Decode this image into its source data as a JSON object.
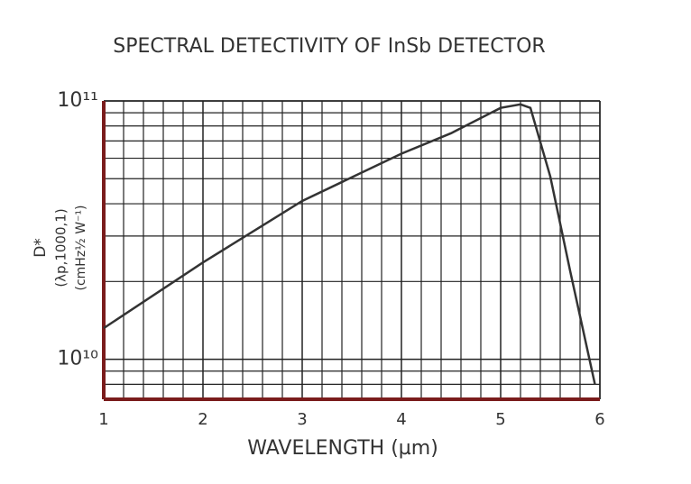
{
  "chart_data": {
    "type": "line",
    "title": "SPECTRAL DETECTIVITY OF InSb DETECTOR",
    "x_label": "WAVELENGTH (µm)",
    "y_label": "D*",
    "y_label_sub1": "(λp,1000,1)",
    "y_label_sub2": "(cmHz½ W⁻¹)",
    "log_y": true,
    "grid": true,
    "xlim": [
      1,
      6
    ],
    "xticks": [
      1,
      2,
      3,
      4,
      5,
      6
    ],
    "minor_xticks": [
      1.2,
      1.4,
      1.6,
      1.8,
      2.2,
      2.4,
      2.6,
      2.8,
      3.2,
      3.4,
      3.6,
      3.8,
      4.2,
      4.4,
      4.6,
      4.8,
      5.2,
      5.4,
      5.6,
      5.8
    ],
    "ylim": [
      7000000000,
      100000000000
    ],
    "yticks": [
      {
        "value": 10000000000,
        "label": "10¹⁰"
      },
      {
        "value": 100000000000,
        "label": "10¹¹"
      }
    ],
    "minor_yticks": [
      8000000000,
      9000000000,
      20000000000,
      30000000000,
      40000000000,
      50000000000,
      60000000000,
      70000000000,
      80000000000,
      90000000000
    ],
    "series": [
      {
        "color": "#333333",
        "x": [
          1,
          2,
          3,
          4,
          4.5,
          5,
          5.2,
          5.3,
          5.5,
          5.7,
          5.95
        ],
        "values": [
          13200000000,
          23700000000,
          41000000000,
          62500000000,
          75000000000,
          94000000000,
          97000000000,
          94000000000,
          51000000000,
          22000000000,
          8000000000
        ]
      }
    ]
  }
}
